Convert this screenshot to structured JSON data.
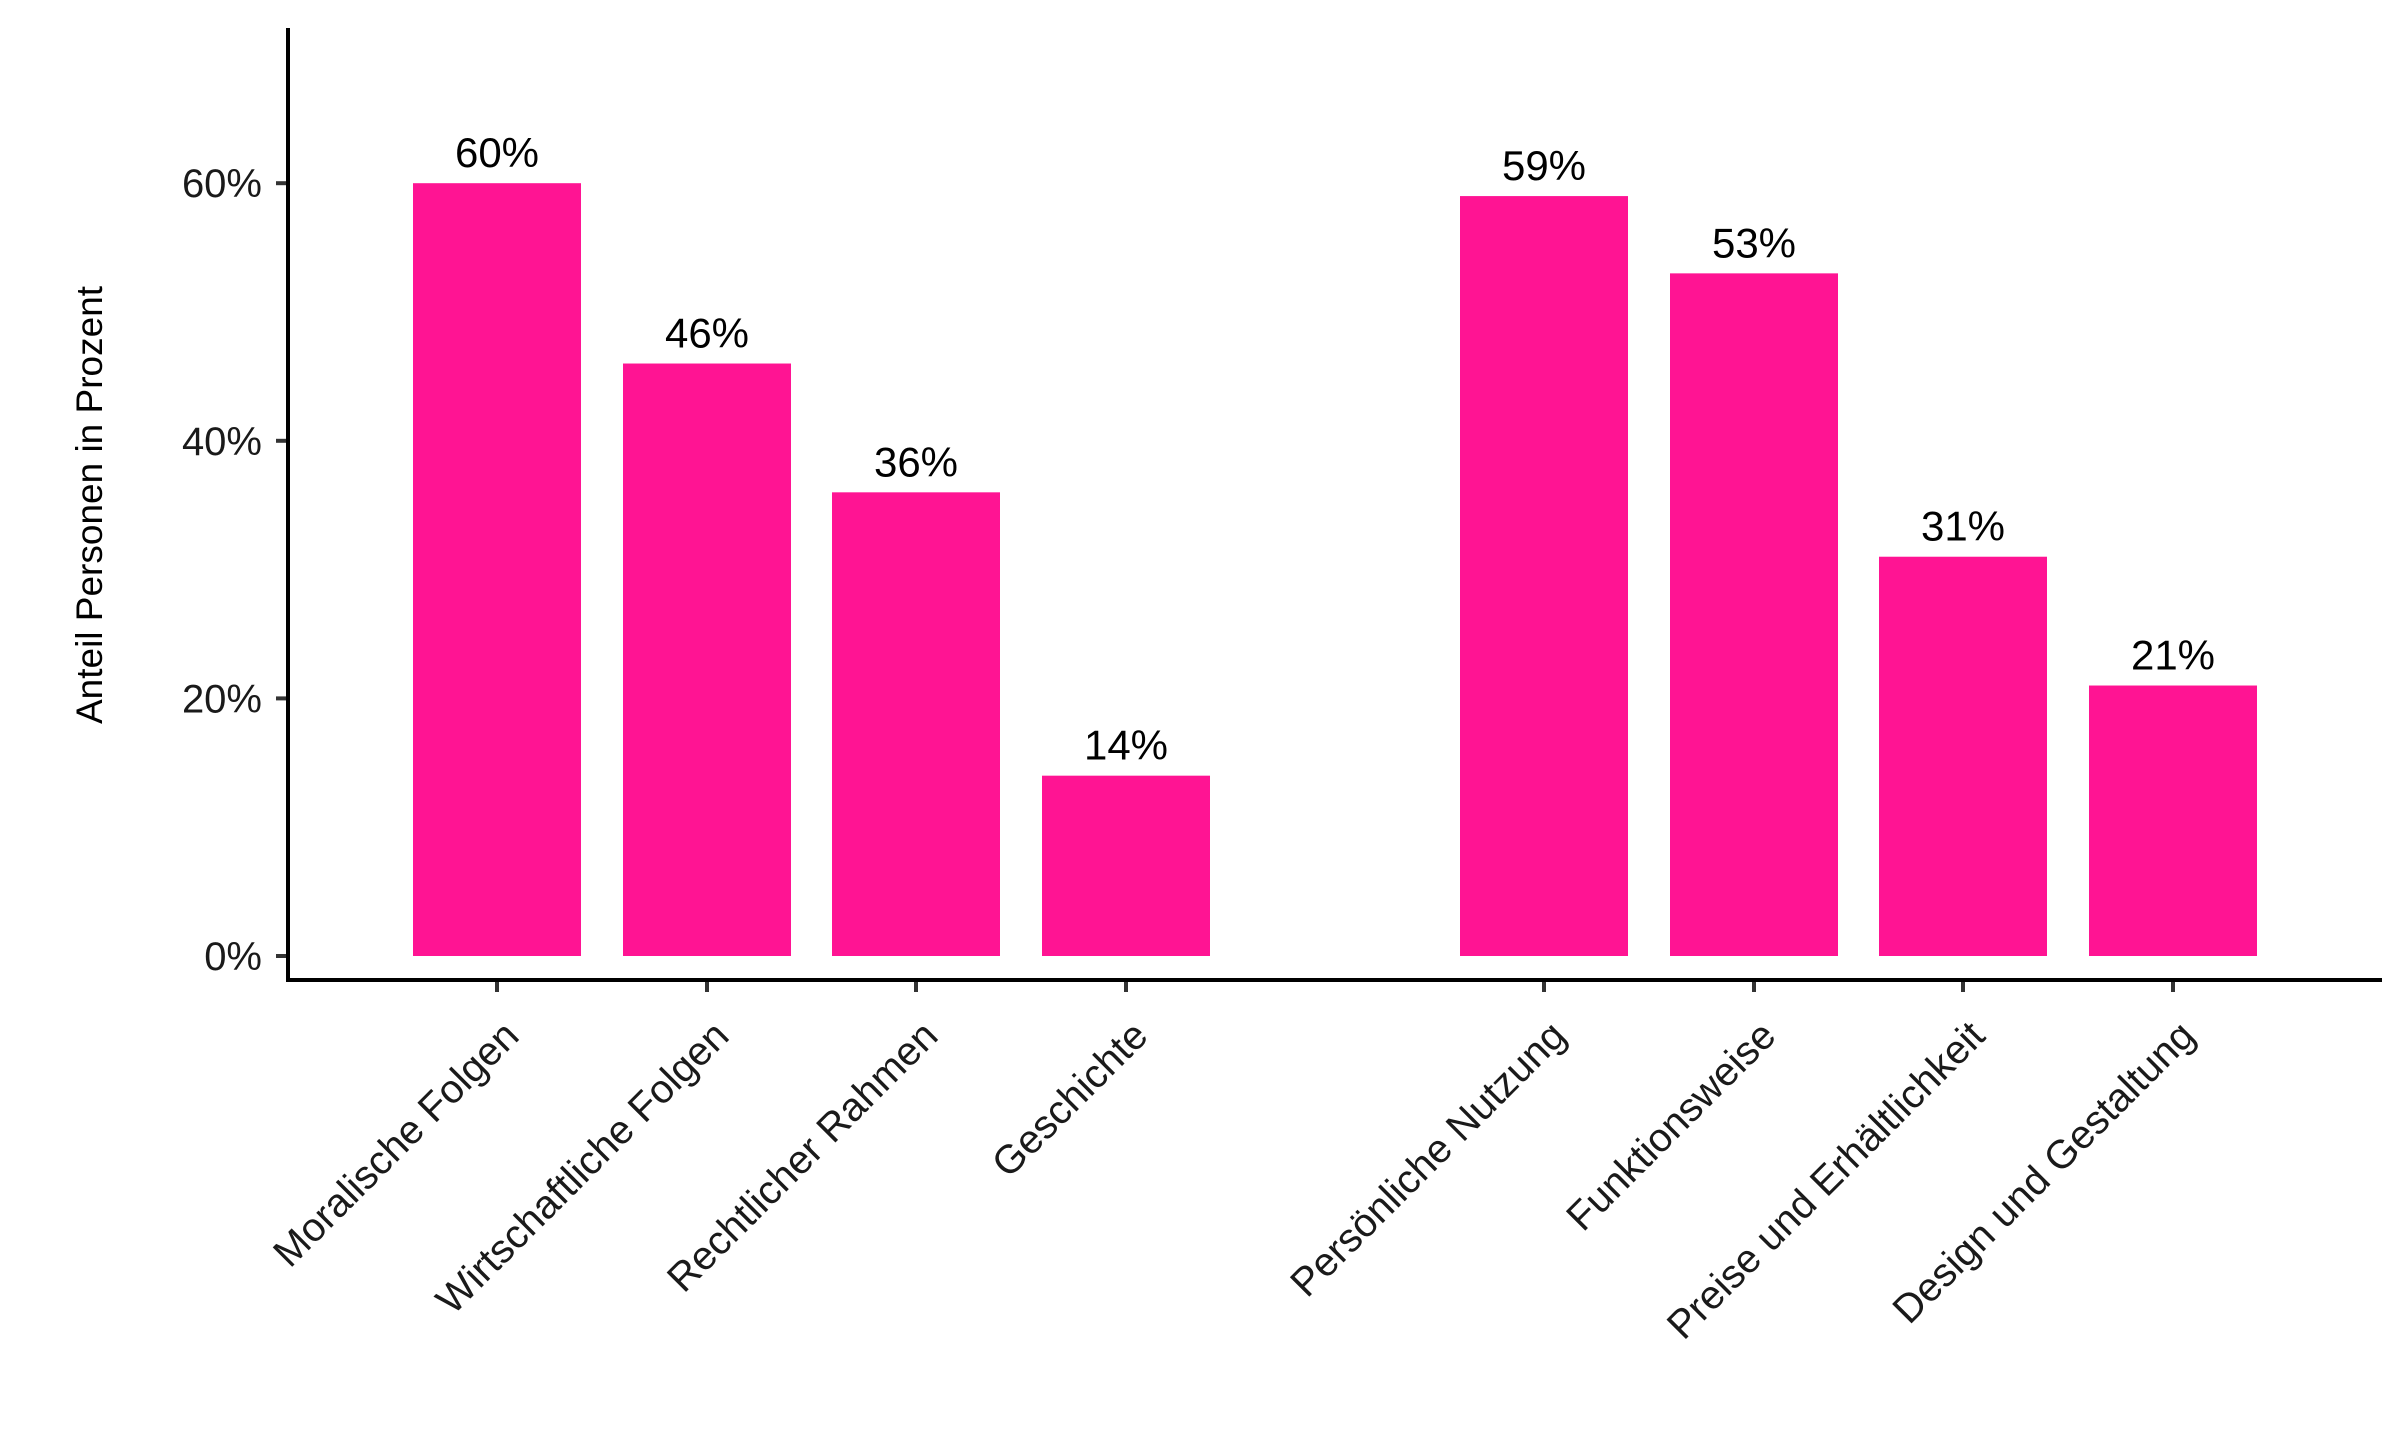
{
  "chart_data": {
    "type": "bar",
    "categories": [
      "Moralische Folgen",
      "Wirtschaftliche Folgen",
      "Rechtlicher Rahmen",
      "Geschichte",
      "Persönliche Nutzung",
      "Funktionsweise",
      "Preise und Erhältlichkeit",
      "Design und Gestaltung"
    ],
    "groups": [
      {
        "categories": [
          "Moralische Folgen",
          "Wirtschaftliche Folgen",
          "Rechtlicher Rahmen",
          "Geschichte"
        ]
      },
      {
        "categories": [
          "Persönliche Nutzung",
          "Funktionsweise",
          "Preise und Erhältlichkeit",
          "Design und Gestaltung"
        ]
      }
    ],
    "values": [
      60,
      46,
      36,
      14,
      59,
      53,
      31,
      21
    ],
    "value_labels": [
      "60%",
      "46%",
      "36%",
      "14%",
      "59%",
      "53%",
      "31%",
      "21%"
    ],
    "title": "",
    "xlabel": "",
    "ylabel": "Anteil Personen in Prozent",
    "ylim": [
      0,
      72
    ],
    "yticks": [
      0,
      20,
      40,
      60
    ],
    "ytick_labels": [
      "0%",
      "20%",
      "40%",
      "60%"
    ],
    "grid": false,
    "legend": "none",
    "bar_color": "#FF1493"
  }
}
